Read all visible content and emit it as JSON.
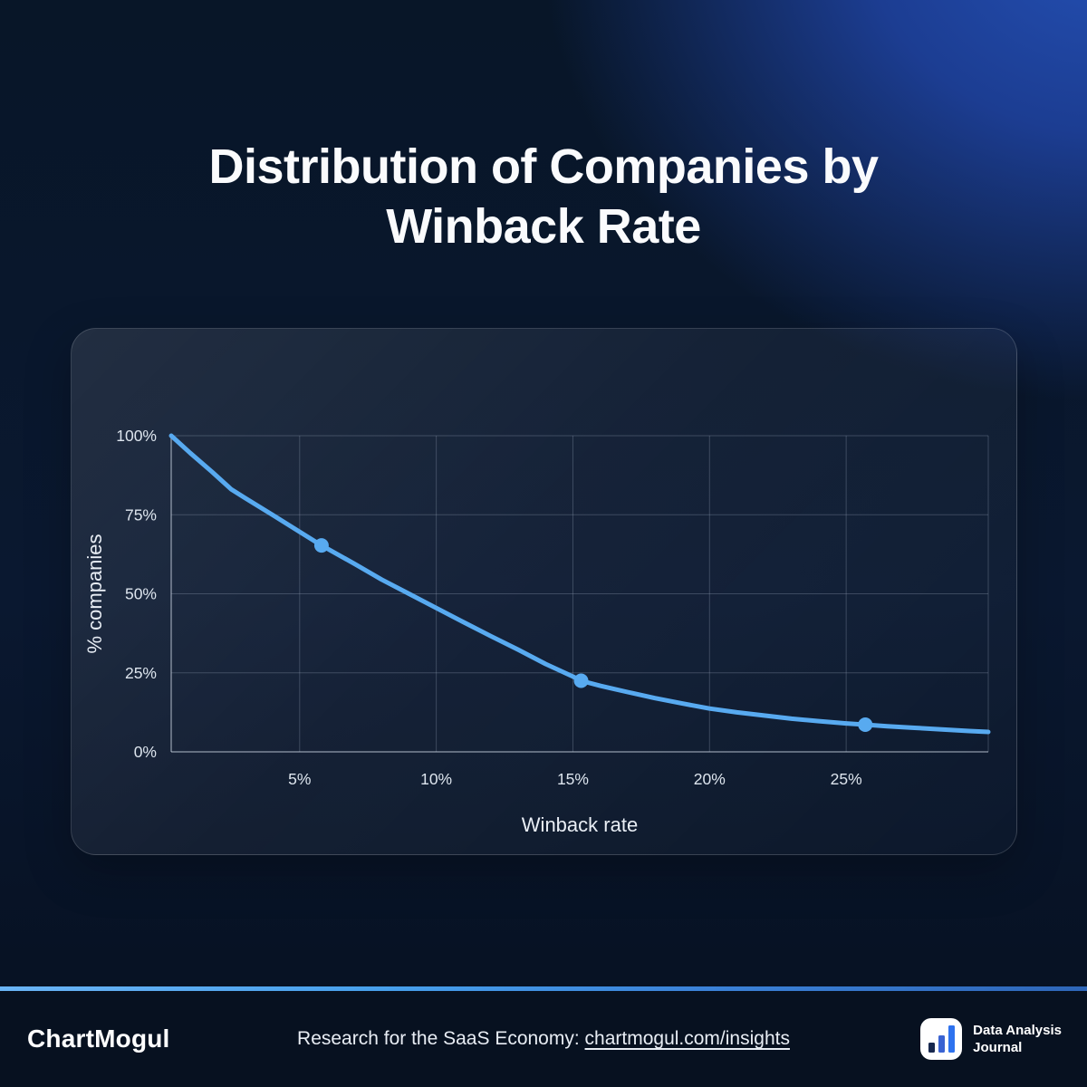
{
  "title_lines": [
    "Distribution of Companies by",
    "Winback Rate"
  ],
  "chart_data": {
    "type": "line",
    "title": "Distribution of Companies by Winback Rate",
    "xlabel": "Winback rate",
    "ylabel": "% companies",
    "xlim": [
      0.3,
      30.2
    ],
    "ylim": [
      0,
      100
    ],
    "grid": true,
    "legend": "none",
    "x_tick_values": [
      5,
      10,
      15,
      20,
      25
    ],
    "x_tick_labels": [
      "5%",
      "10%",
      "15%",
      "20%",
      "25%"
    ],
    "y_tick_values": [
      0,
      25,
      50,
      75,
      100
    ],
    "y_tick_labels": [
      "0%",
      "25%",
      "50%",
      "75%",
      "100%"
    ],
    "line_color": "#58aaf0",
    "grid_color": "rgba(148,163,184,0.32)",
    "axis_color": "rgba(214,222,235,0.55)",
    "series": [
      {
        "name": "% companies",
        "points": [
          [
            0.3,
            100
          ],
          [
            1,
            94.5
          ],
          [
            1.8,
            88.5
          ],
          [
            2.5,
            83
          ],
          [
            3,
            80.3
          ],
          [
            4,
            75
          ],
          [
            5,
            69.6
          ],
          [
            5.8,
            65.3
          ],
          [
            7,
            59.5
          ],
          [
            8,
            54.5
          ],
          [
            9,
            50
          ],
          [
            10,
            45.5
          ],
          [
            11,
            41
          ],
          [
            12,
            36.6
          ],
          [
            13,
            32.3
          ],
          [
            14,
            27.8
          ],
          [
            15,
            23.8
          ],
          [
            15.3,
            22.5
          ],
          [
            16,
            20.9
          ],
          [
            17,
            18.9
          ],
          [
            18,
            17
          ],
          [
            19,
            15.3
          ],
          [
            20,
            13.7
          ],
          [
            21,
            12.5
          ],
          [
            22,
            11.5
          ],
          [
            23,
            10.5
          ],
          [
            24,
            9.7
          ],
          [
            25,
            9
          ],
          [
            25.7,
            8.6
          ],
          [
            26.5,
            8.1
          ],
          [
            27.5,
            7.6
          ],
          [
            28.5,
            7.1
          ],
          [
            29.5,
            6.6
          ],
          [
            30.2,
            6.3
          ]
        ]
      }
    ],
    "markers": [
      [
        5.8,
        65.3
      ],
      [
        15.3,
        22.5
      ],
      [
        25.7,
        8.6
      ]
    ]
  },
  "footer": {
    "brand": "ChartMogul",
    "tagline_prefix": "Research for the SaaS Economy: ",
    "link_text": "chartmogul.com/insights",
    "badge_line1": "Data Analysis",
    "badge_line2": "Journal",
    "badge_icon": "bar-chart-icon"
  },
  "colors": {
    "background_dark": "#081628",
    "glow_blue": "#2450b4",
    "card_border": "rgba(255,255,255,0.16)",
    "line_blue": "#58aaf0",
    "separator_blue": "#47a0ec",
    "footer_bg": "#071120"
  }
}
